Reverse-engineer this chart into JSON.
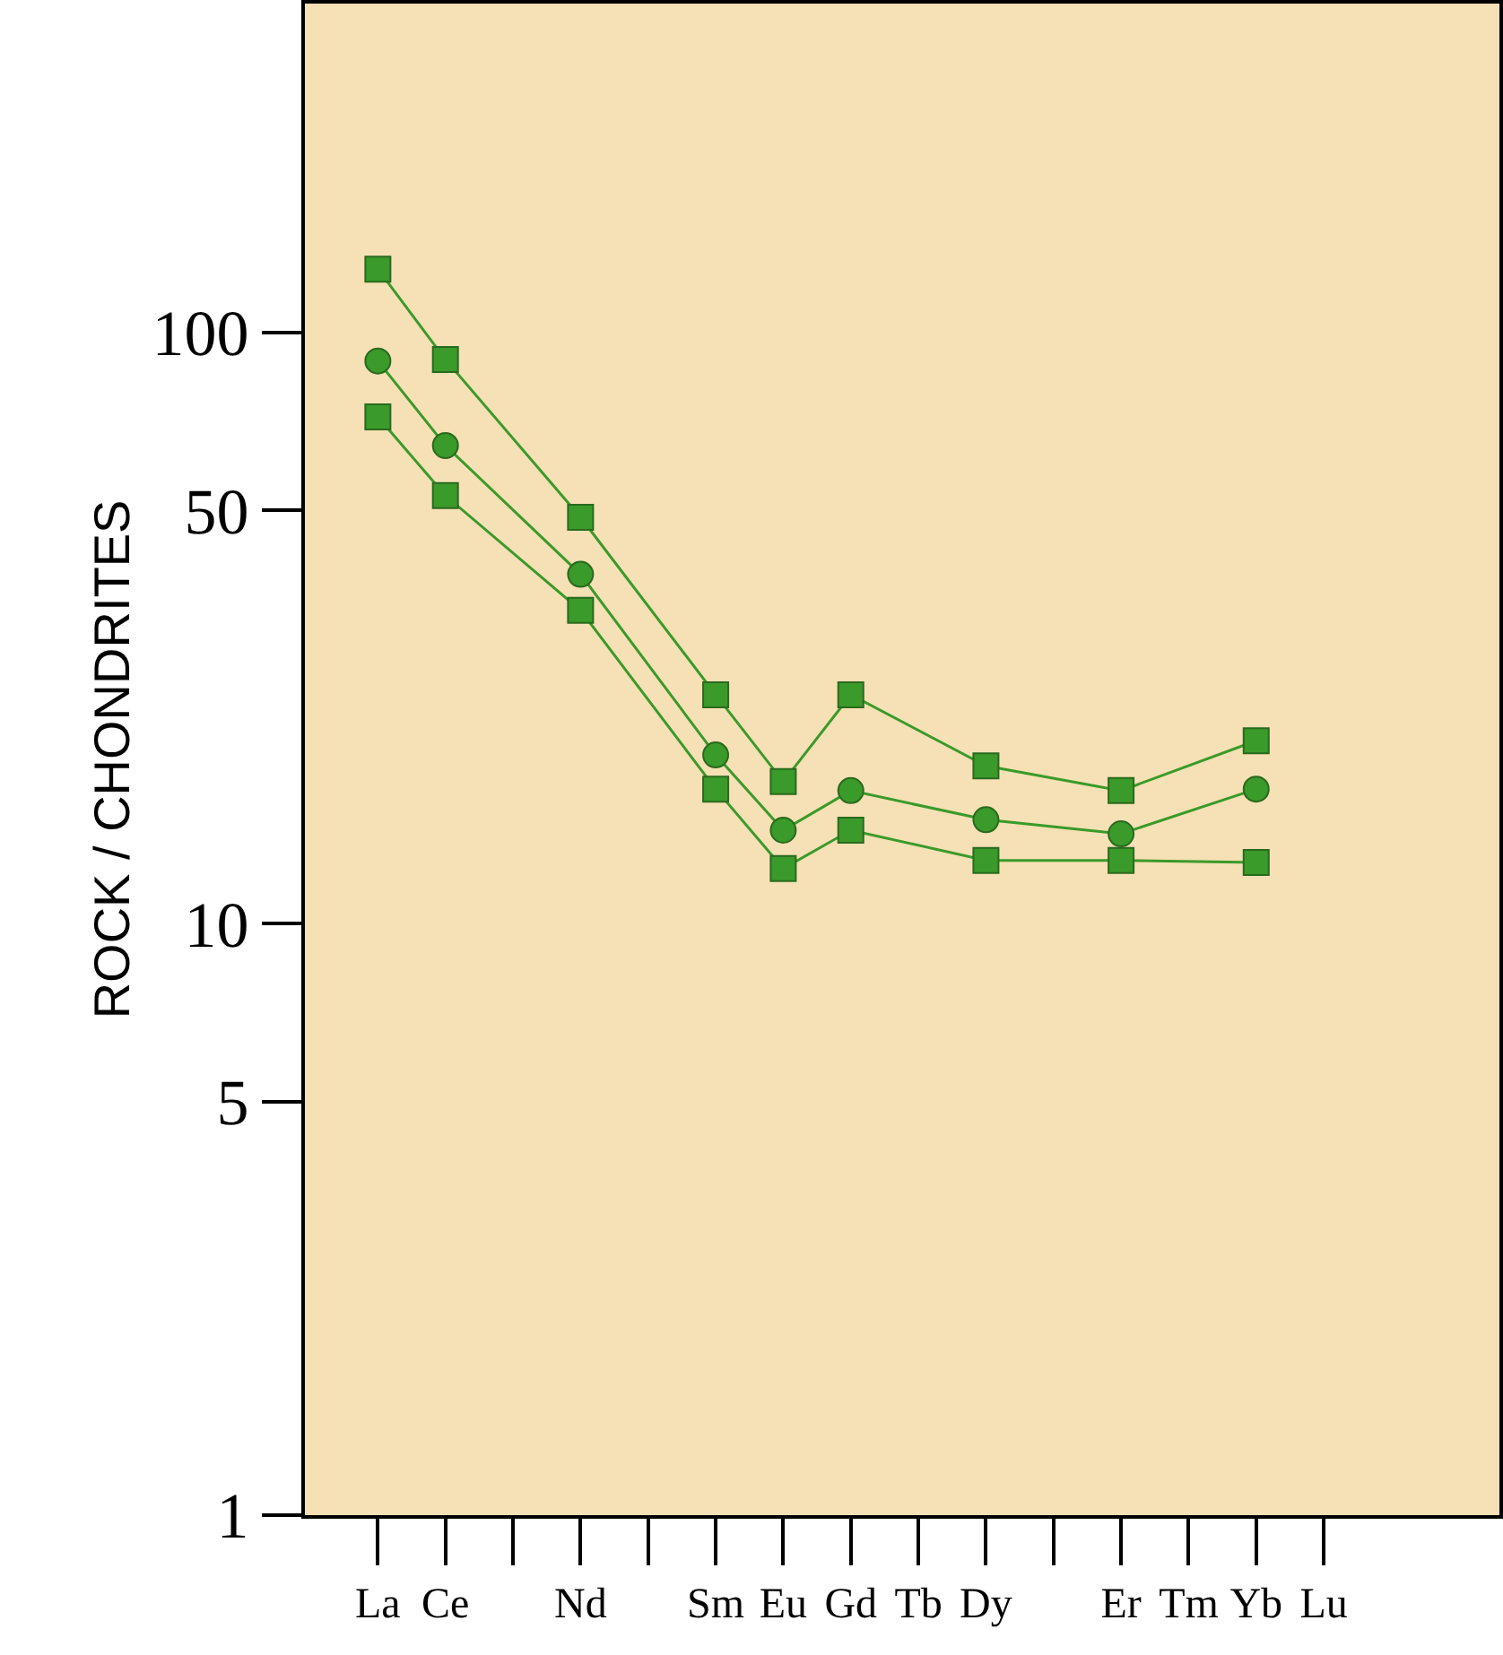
{
  "chart_data": {
    "type": "line",
    "ylabel": "ROCK / CHONDRITES",
    "categories": [
      "La",
      "Ce",
      null,
      "Nd",
      null,
      "Sm",
      "Eu",
      "Gd",
      "Tb",
      "Dy",
      null,
      "Er",
      "Tm",
      "Yb",
      "Lu"
    ],
    "series": [
      {
        "color": "#3a9a2a",
        "marker": "square",
        "values": [
          128,
          90,
          null,
          48.7,
          null,
          24.4,
          17.4,
          24.4,
          null,
          18.5,
          null,
          16.8,
          null,
          20.4,
          null
        ]
      },
      {
        "color": "#3a9a2a",
        "marker": "circle",
        "values": [
          89.5,
          64.4,
          null,
          39,
          null,
          19.3,
          14.4,
          16.8,
          null,
          15,
          null,
          14.2,
          null,
          16.9,
          null
        ]
      },
      {
        "color": "#3a9a2a",
        "marker": "square",
        "values": [
          72,
          53,
          null,
          33.9,
          null,
          16.9,
          12.4,
          14.4,
          null,
          12.8,
          null,
          12.8,
          null,
          12.7,
          null
        ]
      }
    ],
    "log": "y",
    "ylim": [
      1,
      360
    ],
    "yticks": [
      1,
      5,
      10,
      50,
      100
    ],
    "grid": false
  }
}
